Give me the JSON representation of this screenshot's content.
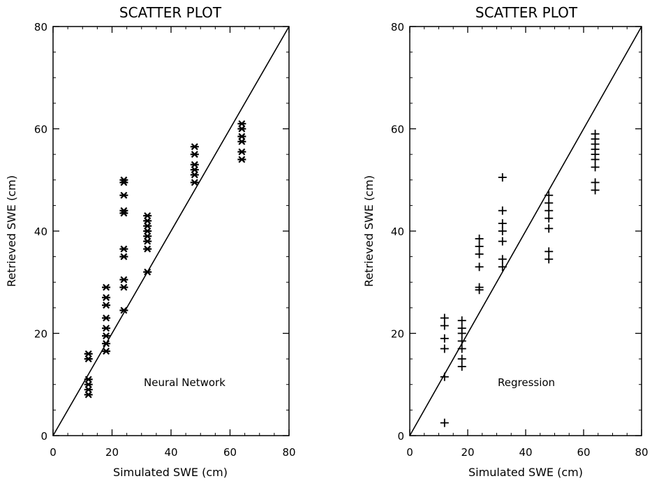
{
  "chart_data": [
    {
      "type": "scatter",
      "title": "SCATTER PLOT",
      "xlabel": "Simulated SWE (cm)",
      "ylabel": "Retrieved SWE (cm)",
      "xlim": [
        0,
        80
      ],
      "ylim": [
        0,
        80
      ],
      "xticks": [
        "0",
        "20",
        "40",
        "60",
        "80"
      ],
      "yticks": [
        "0",
        "20",
        "40",
        "60",
        "80"
      ],
      "grid": false,
      "annotation": "Neural Network",
      "marker": "asterisk",
      "reference_line": "y = x",
      "series": [
        {
          "points": [
            [
              12,
              8
            ],
            [
              12,
              9
            ],
            [
              12,
              10
            ],
            [
              12,
              11
            ],
            [
              12,
              15
            ],
            [
              12,
              16
            ],
            [
              18,
              16.5
            ],
            [
              18,
              18
            ],
            [
              18,
              19.5
            ],
            [
              18,
              21
            ],
            [
              18,
              23
            ],
            [
              18,
              25.5
            ],
            [
              18,
              27
            ],
            [
              18,
              29
            ],
            [
              24,
              24.5
            ],
            [
              24,
              29
            ],
            [
              24,
              30.5
            ],
            [
              24,
              35
            ],
            [
              24,
              36.5
            ],
            [
              24,
              43.5
            ],
            [
              24,
              44
            ],
            [
              24,
              47
            ],
            [
              24,
              49.5
            ],
            [
              24,
              50
            ],
            [
              32,
              32
            ],
            [
              32,
              36.5
            ],
            [
              32,
              38
            ],
            [
              32,
              39
            ],
            [
              32,
              40
            ],
            [
              32,
              41
            ],
            [
              32,
              42
            ],
            [
              32,
              43
            ],
            [
              48,
              49.5
            ],
            [
              48,
              51
            ],
            [
              48,
              52
            ],
            [
              48,
              53
            ],
            [
              48,
              55
            ],
            [
              48,
              56.5
            ],
            [
              64,
              54
            ],
            [
              64,
              55.5
            ],
            [
              64,
              57.5
            ],
            [
              64,
              58.5
            ],
            [
              64,
              60
            ],
            [
              64,
              61
            ]
          ]
        }
      ]
    },
    {
      "type": "scatter",
      "title": "SCATTER PLOT",
      "xlabel": "Simulated SWE (cm)",
      "ylabel": "Retrieved SWE (cm)",
      "xlim": [
        0,
        80
      ],
      "ylim": [
        0,
        80
      ],
      "xticks": [
        "0",
        "20",
        "40",
        "60",
        "80"
      ],
      "yticks": [
        "0",
        "20",
        "40",
        "60",
        "80"
      ],
      "grid": false,
      "annotation": "Regression",
      "marker": "plus",
      "reference_line": "y = x",
      "series": [
        {
          "points": [
            [
              12,
              2.5
            ],
            [
              12,
              11.5
            ],
            [
              12,
              17
            ],
            [
              12,
              19
            ],
            [
              12,
              21.5
            ],
            [
              12,
              23
            ],
            [
              18,
              13.5
            ],
            [
              18,
              15
            ],
            [
              18,
              17
            ],
            [
              18,
              18.5
            ],
            [
              18,
              20
            ],
            [
              18,
              21
            ],
            [
              18,
              22.5
            ],
            [
              24,
              28.5
            ],
            [
              24,
              29
            ],
            [
              24,
              33
            ],
            [
              24,
              35.5
            ],
            [
              24,
              37
            ],
            [
              24,
              38.5
            ],
            [
              32,
              33
            ],
            [
              32,
              34.5
            ],
            [
              32,
              38
            ],
            [
              32,
              40
            ],
            [
              32,
              41.5
            ],
            [
              32,
              44
            ],
            [
              32,
              50.5
            ],
            [
              48,
              34.5
            ],
            [
              48,
              36
            ],
            [
              48,
              40.5
            ],
            [
              48,
              42.5
            ],
            [
              48,
              44
            ],
            [
              48,
              45.5
            ],
            [
              48,
              47
            ],
            [
              64,
              48
            ],
            [
              64,
              49.5
            ],
            [
              64,
              52.5
            ],
            [
              64,
              54
            ],
            [
              64,
              55
            ],
            [
              64,
              56
            ],
            [
              64,
              57
            ],
            [
              64,
              58
            ],
            [
              64,
              59
            ]
          ]
        }
      ]
    }
  ]
}
